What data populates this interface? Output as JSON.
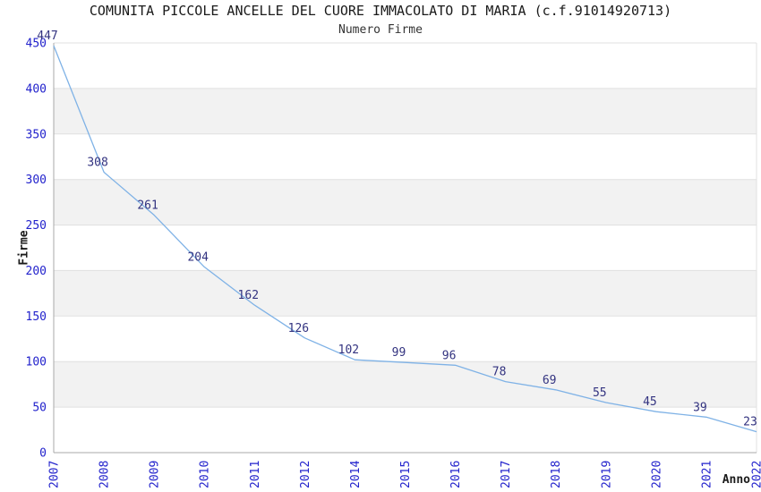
{
  "chart_data": {
    "type": "line",
    "title": "COMUNITA PICCOLE ANCELLE DEL CUORE IMMACOLATO DI MARIA (c.f.91014920713)",
    "subtitle": "Numero Firme",
    "xlabel": "Anno",
    "ylabel": "Firme",
    "categories": [
      "2007",
      "2008",
      "2009",
      "2010",
      "2011",
      "2012",
      "2014",
      "2015",
      "2016",
      "2017",
      "2018",
      "2019",
      "2020",
      "2021",
      "2022"
    ],
    "values": [
      447,
      308,
      261,
      204,
      162,
      126,
      102,
      99,
      96,
      78,
      69,
      55,
      45,
      39,
      23
    ],
    "ylim": [
      0,
      450
    ],
    "ytick_step": 50,
    "yticks": [
      0,
      50,
      100,
      150,
      200,
      250,
      300,
      350,
      400,
      450
    ],
    "grid": "horizontal gridlines with alternating gray bands every 50 units",
    "legend": "none",
    "data_labels": "shown above each point",
    "colors": {
      "line": "#7fb2e6",
      "data_label": "#333380",
      "tick_label": "#2222cc",
      "band": "#f2f2f2",
      "gridline": "#e0e0e0",
      "axis": "#a8a8a8",
      "title_text": "#1a1a1a"
    }
  }
}
